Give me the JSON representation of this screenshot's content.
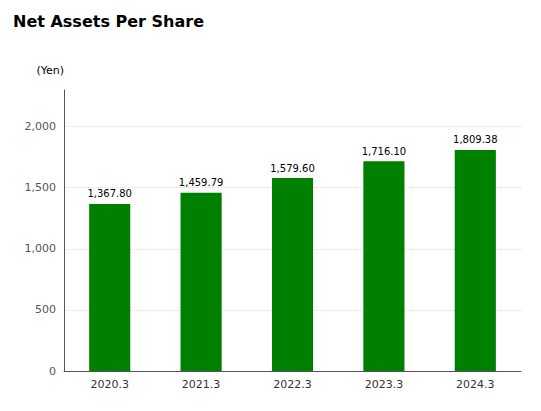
{
  "chart_data": {
    "type": "bar",
    "title": "Net Assets Per Share",
    "ylabel": "(Yen)",
    "categories": [
      "2020.3",
      "2021.3",
      "2022.3",
      "2023.3",
      "2024.3"
    ],
    "values": [
      1367.8,
      1459.79,
      1579.6,
      1716.1,
      1809.38
    ],
    "value_labels": [
      "1,367.80",
      "1,459.79",
      "1,579.60",
      "1,716.10",
      "1,809.38"
    ],
    "data_labels": true,
    "color": "#008000",
    "ylim": [
      0,
      2300
    ],
    "yticks": [
      0,
      500,
      {
        "value": 1000,
        "label": "1,000"
      },
      {
        "value": 1500,
        "label": "1,500"
      },
      {
        "value": 2000,
        "label": "2,000"
      }
    ],
    "grid": true
  }
}
